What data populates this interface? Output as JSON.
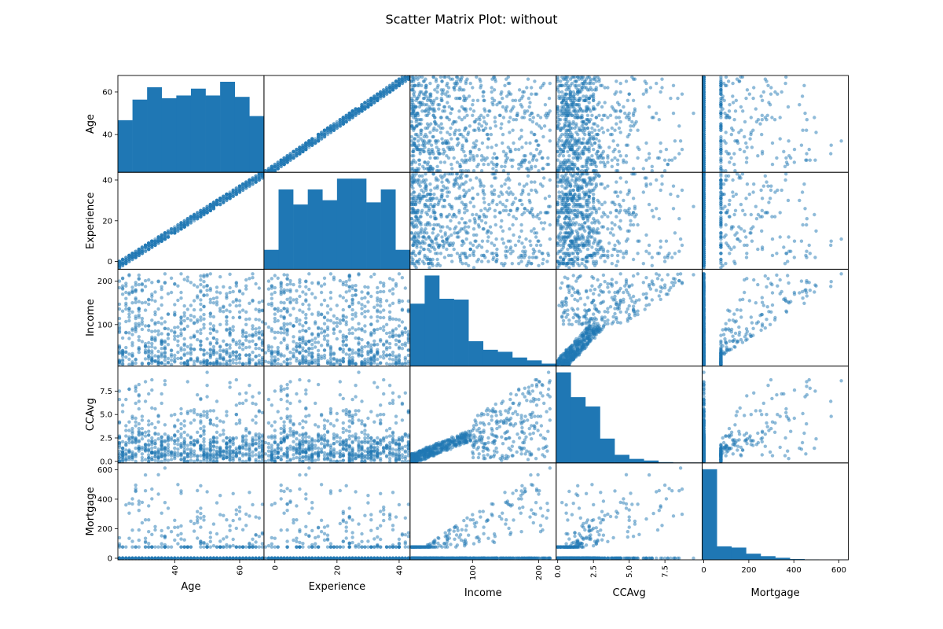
{
  "chart_data": {
    "type": "scatter",
    "title": "Scatter Matrix Plot: without",
    "color": "#1f77b4",
    "point_alpha": 0.5,
    "grid": false,
    "variables": [
      {
        "name": "Age",
        "range": [
          23,
          67
        ],
        "ticks": [
          40,
          60
        ],
        "tick_labels": [
          "40",
          "60"
        ],
        "x_tick_rotation": 90,
        "hist_counts": [
          38,
          53,
          62,
          54,
          56,
          61,
          56,
          66,
          55,
          41
        ]
      },
      {
        "name": "Experience",
        "range": [
          -3,
          43
        ],
        "ticks": [
          0,
          20,
          40
        ],
        "tick_labels": [
          "0",
          "20",
          "40"
        ],
        "x_tick_rotation": 90,
        "hist_counts": [
          9,
          37,
          30,
          37,
          32,
          42,
          42,
          31,
          37,
          9
        ]
      },
      {
        "name": "Income",
        "range": [
          8,
          224
        ],
        "ticks": [
          100,
          200
        ],
        "tick_labels": [
          "100",
          "200"
        ],
        "x_tick_rotation": 90,
        "hist_counts": [
          153,
          222,
          165,
          163,
          61,
          40,
          35,
          21,
          14,
          6
        ]
      },
      {
        "name": "CCAvg",
        "range": [
          0,
          10
        ],
        "ticks": [
          0,
          2.5,
          5,
          7.5
        ],
        "tick_labels": [
          "0.0",
          "2.5",
          "5.0",
          "7.5"
        ],
        "x_tick_rotation": 90,
        "hist_counts": [
          223,
          162,
          139,
          60,
          20,
          10,
          6,
          2,
          1,
          1
        ]
      },
      {
        "name": "Mortgage",
        "range": [
          0,
          635
        ],
        "ticks": [
          0,
          200,
          400,
          600
        ],
        "tick_labels": [
          "0",
          "200",
          "400",
          "600"
        ],
        "x_tick_rotation": 0,
        "hist_counts": [
          222,
          33,
          30,
          15,
          9,
          5,
          2,
          1,
          0.5,
          0.5
        ]
      }
    ],
    "pair_relations": {
      "Age_Experience": "linear, experience approximately equals age minus 25",
      "Income_CCAvg": "positive, spread widens with income",
      "Income_Mortgage": "positive with many zero mortgages",
      "CCAvg_Mortgage": "weak, many zero mortgages"
    }
  }
}
